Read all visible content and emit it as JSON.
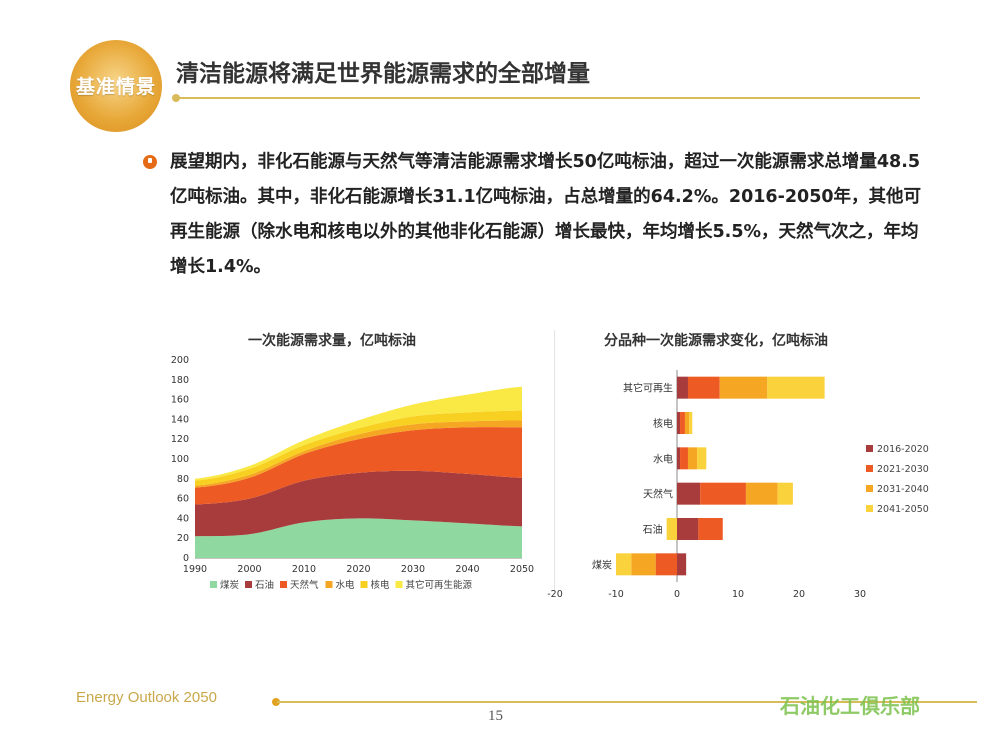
{
  "header": {
    "logo_text": "基准情景",
    "title": "清洁能源将满足世界能源需求的全部增量"
  },
  "body": {
    "paragraph": "展望期内，非化石能源与天然气等清洁能源需求增长50亿吨标油，超过一次能源需求总增量48.5亿吨标油。其中，非化石能源增长31.1亿吨标油，占总增量的64.2%。2016-2050年，其他可再生能源（除水电和核电以外的其他非化石能源）增长最快，年均增长5.5%，天然气次之，年均增长1.4%。"
  },
  "chart_data": [
    {
      "type": "area",
      "stacked": true,
      "title": "一次能源需求量，亿吨标油",
      "x": [
        1990,
        2000,
        2010,
        2020,
        2030,
        2040,
        2050
      ],
      "x_ticks": [
        "1990",
        "2000",
        "2010",
        "2020",
        "2030",
        "2040",
        "2050"
      ],
      "ylim": [
        0,
        200
      ],
      "y_ticks": [
        "0",
        "20",
        "40",
        "60",
        "80",
        "100",
        "120",
        "140",
        "160",
        "180",
        "200"
      ],
      "legend_position": "bottom",
      "series": [
        {
          "name": "煤炭",
          "color": "#8fd9a0",
          "values": [
            22,
            24,
            36,
            40,
            38,
            35,
            32
          ]
        },
        {
          "name": "石油",
          "color": "#a83c3c",
          "values": [
            32,
            36,
            42,
            46,
            50,
            50,
            49
          ]
        },
        {
          "name": "天然气",
          "color": "#ee5a24",
          "values": [
            17,
            21,
            27,
            34,
            41,
            47,
            51
          ]
        },
        {
          "name": "水电",
          "color": "#f5a623",
          "values": [
            2,
            3,
            3,
            5,
            6,
            6,
            7
          ]
        },
        {
          "name": "核电",
          "color": "#f7d021",
          "values": [
            5,
            6,
            6,
            6,
            8,
            9,
            10
          ]
        },
        {
          "name": "其它可再生能源",
          "color": "#fae844",
          "values": [
            2,
            3,
            5,
            8,
            12,
            18,
            24
          ]
        }
      ]
    },
    {
      "type": "bar",
      "orientation": "horizontal",
      "stacked": true,
      "title": "分品种一次能源需求变化，亿吨标油",
      "categories": [
        "其它可再生",
        "核电",
        "水电",
        "天然气",
        "石油",
        "煤炭"
      ],
      "xlim": [
        -20,
        30
      ],
      "x_ticks": [
        "-20",
        "-10",
        "0",
        "10",
        "20",
        "30"
      ],
      "legend_position": "right",
      "series": [
        {
          "name": "2016-2020",
          "color": "#a83c3c",
          "values": [
            1.8,
            0.5,
            0.5,
            3.8,
            3.5,
            1.5
          ]
        },
        {
          "name": "2021-2030",
          "color": "#ee5a24",
          "values": [
            5.2,
            0.8,
            1.3,
            7.5,
            4.0,
            -3.5
          ]
        },
        {
          "name": "2031-2040",
          "color": "#f5a623",
          "values": [
            7.8,
            0.7,
            1.5,
            5.2,
            0,
            -4.0
          ]
        },
        {
          "name": "2041-2050",
          "color": "#fad23c",
          "values": [
            9.4,
            0.5,
            1.5,
            2.5,
            -1.7,
            -2.5
          ]
        }
      ]
    }
  ],
  "footer": {
    "report_name": "Energy Outlook 2050",
    "page_number": "15",
    "watermark": "石油化工俱乐部"
  }
}
